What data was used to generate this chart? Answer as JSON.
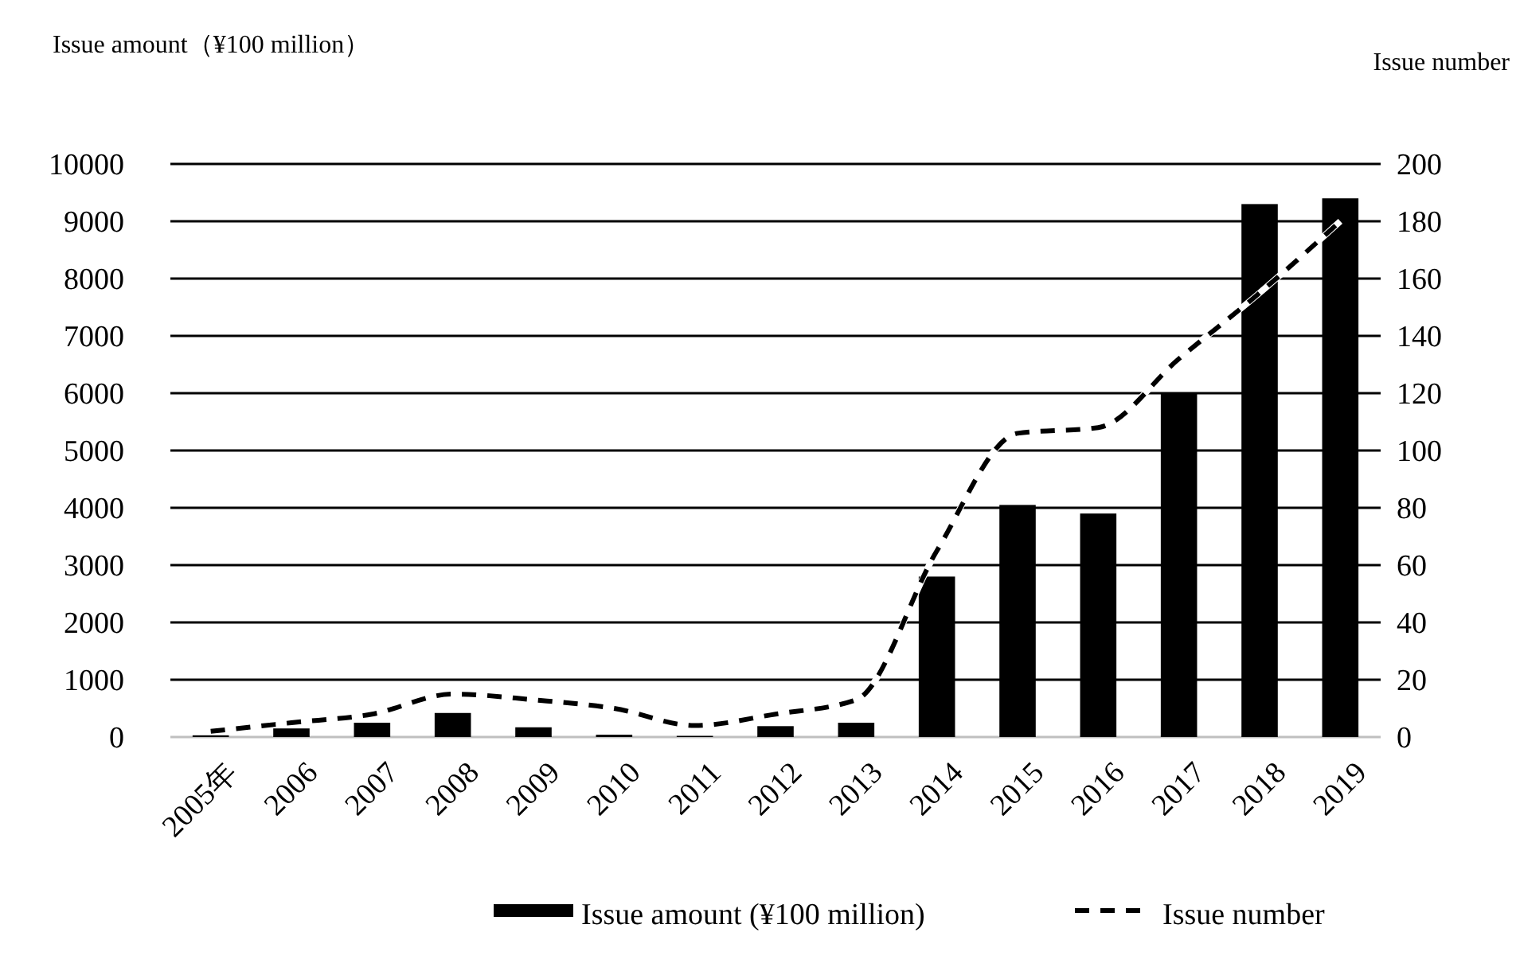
{
  "chart_data": {
    "type": "bar",
    "categories": [
      "2005年",
      "2006",
      "2007",
      "2008",
      "2009",
      "2010",
      "2011",
      "2012",
      "2013",
      "2014",
      "2015",
      "2016",
      "2017",
      "2018",
      "2019"
    ],
    "series": [
      {
        "name": "Issue amount (¥100 million)",
        "color": "#000000",
        "values": [
          30,
          150,
          250,
          420,
          170,
          40,
          20,
          190,
          250,
          2800,
          4050,
          3900,
          6000,
          9300,
          9400
        ]
      },
      {
        "name": "Issue number",
        "type": "line",
        "axis": "y2",
        "color": "#000000",
        "line_style": "dashed",
        "values": [
          2,
          5,
          8,
          15,
          13,
          10,
          4,
          8,
          13,
          65,
          106,
          108,
          132,
          155,
          180
        ]
      }
    ],
    "ylabel": "Issue amount（¥100 million）",
    "y2label": "Issue number",
    "ylim": [
      0,
      10000
    ],
    "yticks": [
      0,
      1000,
      2000,
      3000,
      4000,
      5000,
      6000,
      7000,
      8000,
      9000,
      10000
    ],
    "y2lim": [
      0,
      200
    ],
    "y2ticks": [
      0,
      20,
      40,
      60,
      80,
      100,
      120,
      140,
      160,
      180,
      200
    ],
    "grid": "y",
    "legend": "bottom"
  }
}
